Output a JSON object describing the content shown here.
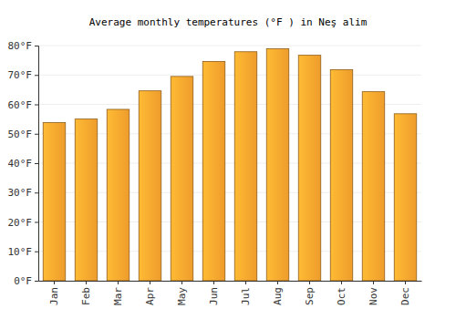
{
  "chart_data": {
    "type": "bar",
    "title": "Average monthly temperatures (°F ) in Neş alim",
    "categories": [
      "Jan",
      "Feb",
      "Mar",
      "Apr",
      "May",
      "Jun",
      "Jul",
      "Aug",
      "Sep",
      "Oct",
      "Nov",
      "Dec"
    ],
    "values": [
      53.8,
      55.0,
      58.3,
      64.6,
      69.5,
      74.6,
      77.9,
      78.9,
      76.7,
      71.8,
      64.3,
      56.8
    ],
    "color": "#fba52e",
    "ylim": [
      0,
      80
    ],
    "yticks": [
      {
        "value": 0,
        "label": "0°F"
      },
      {
        "value": 10,
        "label": "10°F"
      },
      {
        "value": 20,
        "label": "20°F"
      },
      {
        "value": 30,
        "label": "30°F"
      },
      {
        "value": 40,
        "label": "40°F"
      },
      {
        "value": 50,
        "label": "50°F"
      },
      {
        "value": 60,
        "label": "60°F"
      },
      {
        "value": 70,
        "label": "70°F"
      },
      {
        "value": 80,
        "label": "80°F"
      }
    ],
    "grid": true
  }
}
